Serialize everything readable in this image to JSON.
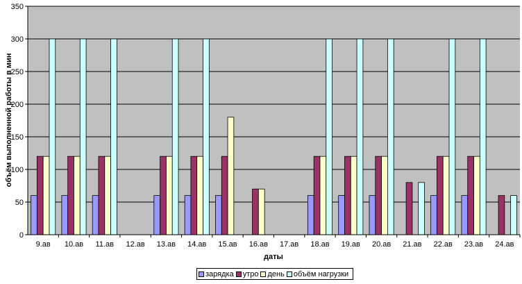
{
  "chart_data": {
    "type": "bar",
    "title": "",
    "xlabel": "даты",
    "ylabel": "объём выполненной работы в мин",
    "ylim": [
      0,
      350
    ],
    "yticks": [
      0,
      50,
      100,
      150,
      200,
      250,
      300,
      350
    ],
    "grid": true,
    "legend_position": "bottom",
    "categories": [
      "9.ав",
      "10.ав",
      "11.ав",
      "12.ав",
      "13.ав",
      "14.ав",
      "15.ав",
      "16.ав",
      "17.ав",
      "18.ав",
      "19.ав",
      "20.ав",
      "21.ав",
      "22.ав",
      "23.ав",
      "24.ав"
    ],
    "series": [
      {
        "name": "зарядка",
        "color": "#9999ff",
        "values": [
          60,
          60,
          60,
          0,
          60,
          60,
          60,
          0,
          0,
          60,
          60,
          60,
          0,
          60,
          60,
          0
        ]
      },
      {
        "name": "утро",
        "color": "#993366",
        "values": [
          120,
          120,
          120,
          0,
          120,
          120,
          120,
          70,
          0,
          120,
          120,
          120,
          80,
          120,
          120,
          60
        ]
      },
      {
        "name": "день",
        "color": "#ffffcc",
        "values": [
          120,
          120,
          120,
          0,
          120,
          120,
          180,
          70,
          0,
          120,
          120,
          120,
          0,
          120,
          120,
          0
        ]
      },
      {
        "name": "объём нагрузки",
        "color": "#ccffff",
        "values": [
          300,
          300,
          300,
          0,
          300,
          300,
          0,
          0,
          0,
          300,
          300,
          300,
          80,
          300,
          300,
          60
        ]
      }
    ],
    "plot_background": "#c0c0c0"
  }
}
